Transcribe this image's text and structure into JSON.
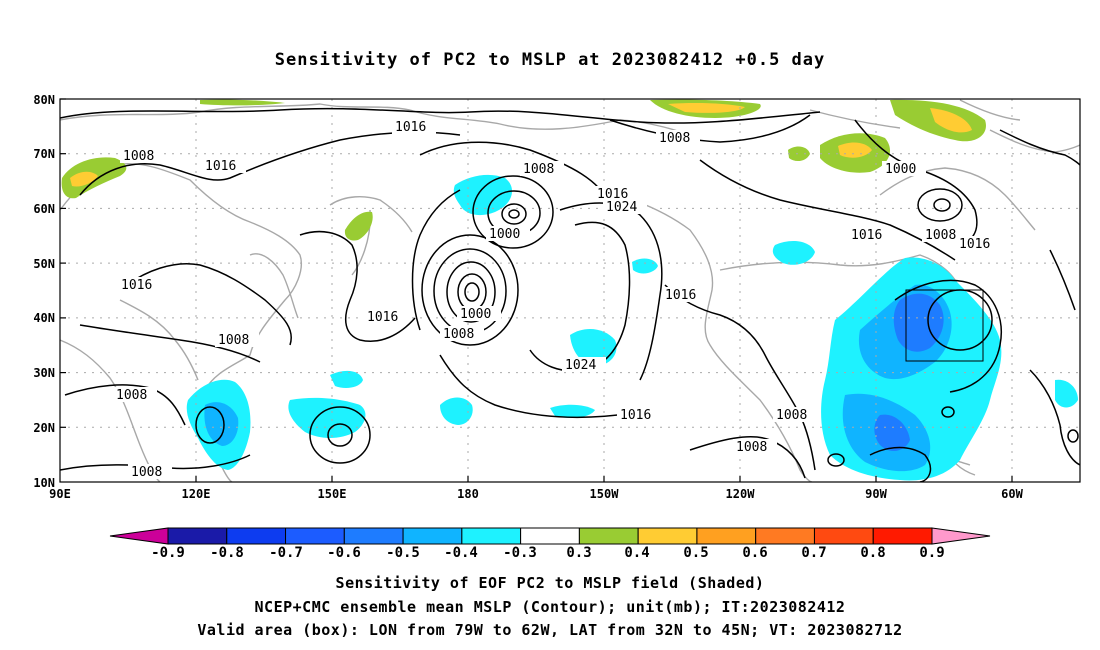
{
  "title": "Sensitivity of PC2 to MSLP at 2023082412 +0.5 day",
  "map": {
    "lat_labels": [
      "80N",
      "70N",
      "60N",
      "50N",
      "40N",
      "30N",
      "20N",
      "10N"
    ],
    "lon_labels": [
      "90E",
      "120E",
      "150E",
      "180",
      "150W",
      "120W",
      "90W",
      "60W"
    ],
    "extent": {
      "lon_min_east": 90,
      "lon_max_east": 315,
      "lat_min": 10,
      "lat_max": 80
    },
    "contour_labels": [
      "1016",
      "1008",
      "1016",
      "1016",
      "1008",
      "1008",
      "1016",
      "1024",
      "1000",
      "1000",
      "1008",
      "1016",
      "1024",
      "1016",
      "1008",
      "1008",
      "1008",
      "1016",
      "1000",
      "1008",
      "1016",
      "1016",
      "1008",
      "1008"
    ],
    "valid_box": {
      "lon_w": -79,
      "lon_e": -62,
      "lat_s": 32,
      "lat_n": 45
    }
  },
  "colorbar": {
    "labels": [
      "-0.9",
      "-0.8",
      "-0.7",
      "-0.6",
      "-0.5",
      "-0.4",
      "-0.3",
      "0.3",
      "0.4",
      "0.5",
      "0.6",
      "0.7",
      "0.8",
      "0.9"
    ],
    "colors": [
      "#1a1aa8",
      "#0d3cf0",
      "#1c5cff",
      "#1e7cff",
      "#10b4ff",
      "#1ef2ff",
      "#ffffff",
      "#99cc33",
      "#ffcc33",
      "#ffa020",
      "#ff7a22",
      "#ff4a11",
      "#ff1a00"
    ],
    "low_end_color": "#cc0099",
    "high_end_color": "#ff99cc"
  },
  "captions": [
    "Sensitivity of EOF PC2 to MSLP field (Shaded)",
    "NCEP+CMC ensemble mean MSLP (Contour); unit(mb); IT:2023082412",
    "Valid area (box): LON from 79W to 62W, LAT from 32N to 45N; VT: 2023082712"
  ]
}
